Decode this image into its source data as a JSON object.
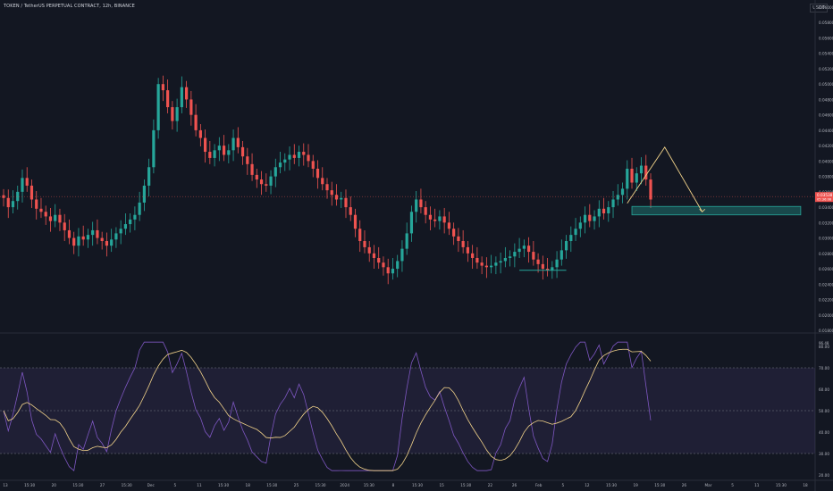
{
  "header": {
    "title": "TOKEN / TetherUS PERPETUAL CONTRACT, 12h, BINANCE",
    "currency": "USDT"
  },
  "colors": {
    "up": "#26a69a",
    "down": "#ef5350",
    "rsi": "#7e57c2",
    "rsi_ma": "#f2d38a",
    "pattern": "#f2d38a",
    "zone": "#26a69a"
  },
  "chart_data": [
    {
      "type": "candlestick",
      "y_ticks": [
        "0.06000",
        "0.05800",
        "0.05600",
        "0.05400",
        "0.05200",
        "0.05000",
        "0.04800",
        "0.04600",
        "0.04400",
        "0.04200",
        "0.04000",
        "0.03800",
        "0.03600",
        "0.03400",
        "0.03200",
        "0.03000",
        "0.02800",
        "0.02600",
        "0.02400",
        "0.02200",
        "0.02000",
        "0.01800"
      ],
      "ylim": [
        0.018,
        0.06
      ],
      "last_price": "0.03538",
      "last_price_sub": "05:36:08",
      "close_series": [
        0.0352,
        0.034,
        0.0348,
        0.036,
        0.0378,
        0.0368,
        0.035,
        0.0338,
        0.0334,
        0.0328,
        0.0322,
        0.033,
        0.032,
        0.031,
        0.03,
        0.029,
        0.0302,
        0.0298,
        0.0304,
        0.031,
        0.03,
        0.0296,
        0.029,
        0.0298,
        0.0306,
        0.0312,
        0.0318,
        0.0324,
        0.033,
        0.0346,
        0.0368,
        0.0392,
        0.044,
        0.05,
        0.0492,
        0.047,
        0.0452,
        0.047,
        0.0496,
        0.048,
        0.046,
        0.044,
        0.043,
        0.0412,
        0.0404,
        0.0414,
        0.042,
        0.0408,
        0.0414,
        0.043,
        0.0418,
        0.0406,
        0.0396,
        0.0382,
        0.0376,
        0.037,
        0.0368,
        0.038,
        0.0392,
        0.0398,
        0.0402,
        0.0408,
        0.0404,
        0.0412,
        0.0408,
        0.04,
        0.039,
        0.0378,
        0.037,
        0.0362,
        0.0356,
        0.035,
        0.0352,
        0.034,
        0.033,
        0.0312,
        0.0296,
        0.0288,
        0.028,
        0.0274,
        0.0268,
        0.0262,
        0.0254,
        0.026,
        0.027,
        0.0286,
        0.0306,
        0.0334,
        0.035,
        0.034,
        0.033,
        0.0324,
        0.0322,
        0.0328,
        0.032,
        0.0312,
        0.0302,
        0.0296,
        0.0288,
        0.028,
        0.0274,
        0.0268,
        0.0264,
        0.0262,
        0.0264,
        0.0268,
        0.027,
        0.0274,
        0.0276,
        0.0282,
        0.0286,
        0.029,
        0.0282,
        0.0272,
        0.0266,
        0.026,
        0.0258,
        0.0262,
        0.0272,
        0.0284,
        0.0296,
        0.0304,
        0.0312,
        0.032,
        0.033,
        0.0322,
        0.0328,
        0.0338,
        0.0332,
        0.034,
        0.035,
        0.0356,
        0.0364,
        0.039,
        0.0372,
        0.0384,
        0.0394,
        0.0376,
        0.035
      ],
      "pattern": {
        "type": "triangle",
        "points": [
          [
            133,
            0.0345
          ],
          [
            141,
            0.0418
          ],
          [
            149,
            0.0334
          ]
        ]
      },
      "zone": {
        "low": 0.033,
        "high": 0.0341,
        "x_start": 134,
        "x_end": 170
      },
      "base_line": {
        "x_start": 110,
        "x_end": 120,
        "y": 0.0258
      }
    },
    {
      "type": "line",
      "name": "RSI",
      "y_ticks": [
        "80.00",
        "70.00",
        "60.00",
        "50.00",
        "40.00",
        "30.00",
        "20.00"
      ],
      "ylim": [
        20,
        80
      ],
      "band": [
        30,
        70
      ],
      "mid": 50,
      "top_label": "96.48"
    }
  ],
  "x_axis": {
    "labels": [
      "13",
      "15:30",
      "20",
      "15:30",
      "27",
      "15:30",
      "Dec",
      "5",
      "11",
      "15:30",
      "18",
      "15:30",
      "25",
      "15:30",
      "2024",
      "15:30",
      "8",
      "15:30",
      "15",
      "15:30",
      "22",
      "26",
      "Feb",
      "5",
      "12",
      "15:30",
      "19",
      "15:30",
      "26",
      "Mar",
      "5",
      "11",
      "15:30",
      "18"
    ]
  }
}
